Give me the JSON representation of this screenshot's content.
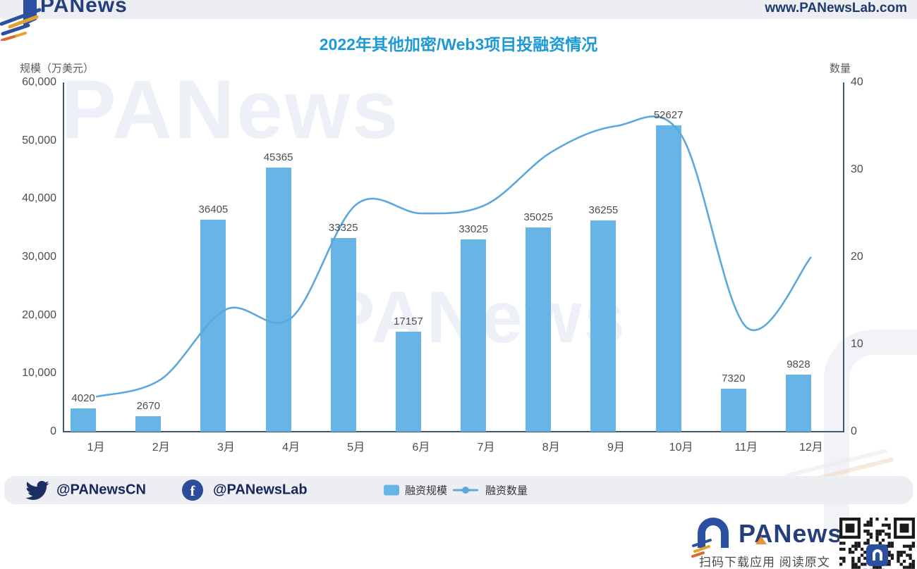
{
  "header": {
    "logo_text": "PANews",
    "site_url": "www.PANewsLab.com"
  },
  "title": "2022年其他加密/Web3项目投融资情况",
  "chart_data": {
    "type": "bar",
    "subtype": "bar+line combo",
    "categories": [
      "1月",
      "2月",
      "3月",
      "4月",
      "5月",
      "6月",
      "7月",
      "8月",
      "9月",
      "10月",
      "11月",
      "12月"
    ],
    "series": [
      {
        "name": "融资规模",
        "type": "bar",
        "axis": "left",
        "values": [
          4020,
          2670,
          36405,
          45365,
          33325,
          17157,
          33025,
          35025,
          36255,
          52627,
          7320,
          9828
        ]
      },
      {
        "name": "融资数量",
        "type": "line",
        "axis": "right",
        "values": [
          4,
          6,
          14,
          13,
          26,
          25,
          26,
          32,
          35,
          34,
          12,
          20
        ]
      }
    ],
    "left_axis": {
      "label": "规模（万美元）",
      "min": 0,
      "max": 60000,
      "ticks": [
        "60,000",
        "50,000",
        "40,000",
        "30,000",
        "20,000",
        "10,000",
        "0"
      ]
    },
    "right_axis": {
      "label": "数量",
      "min": 0,
      "max": 40,
      "ticks": [
        "40",
        "30",
        "20",
        "10",
        "0"
      ]
    },
    "grid": "off",
    "legend_position": "bottom",
    "colors": {
      "bar": "#66B5E6",
      "line": "#5CA8DC",
      "title": "#1D9AD6",
      "axis": "#3E5A70",
      "tick_text": "#4D4D4D",
      "navy": "#24407C"
    }
  },
  "footer_bar": {
    "twitter_handle": "@PANewsCN",
    "facebook_handle": "@PANewsLab",
    "legend": [
      {
        "label": "融资规模",
        "swatch": "bar"
      },
      {
        "label": "融资数量",
        "swatch": "line"
      }
    ]
  },
  "footer": {
    "logo_text": "PANews",
    "caption": "扫码下载应用 阅读原文"
  },
  "watermark": {
    "text": "PANews"
  }
}
